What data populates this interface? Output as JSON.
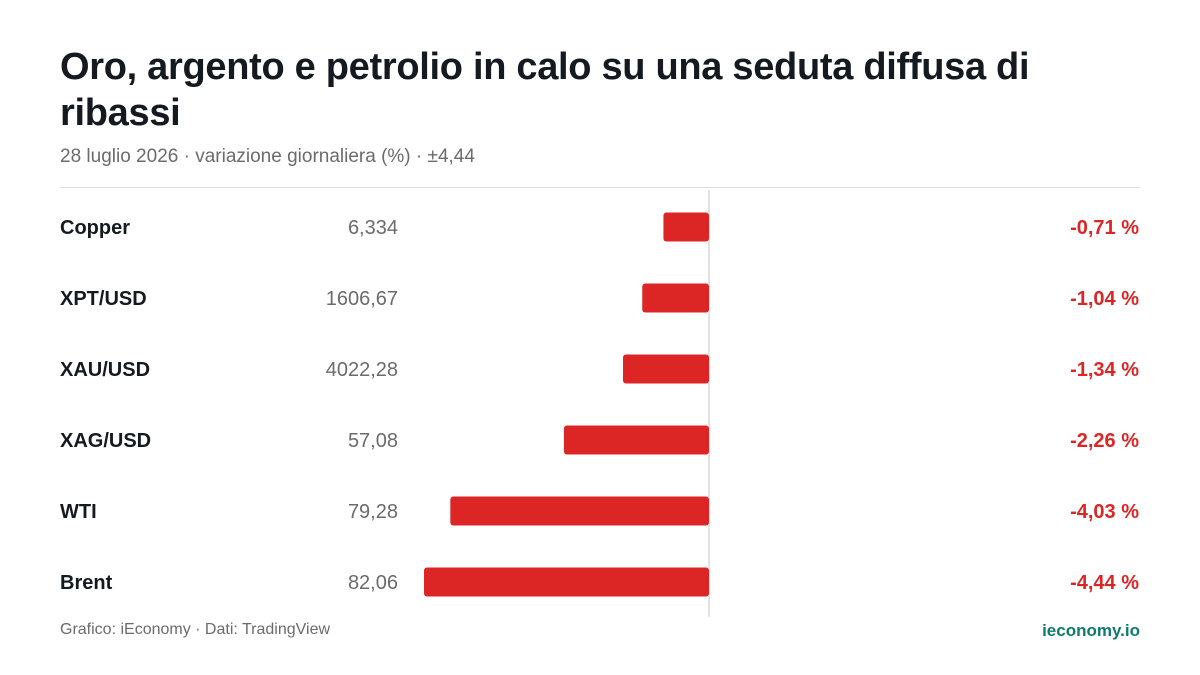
{
  "header": {
    "title": "Oro, argento e petrolio in calo su una seduta diffusa di ribassi",
    "subtitle": "28 luglio 2026 · variazione giornaliera (%) · ±4,44"
  },
  "footer": {
    "credit": "Grafico: iEconomy · Dati: TradingView",
    "brand": "ieconomy.io"
  },
  "colors": {
    "negative": "#dc2626",
    "axis": "#d9d9d9",
    "brand": "#0f7b6c"
  },
  "chart_data": {
    "type": "bar",
    "orientation": "horizontal",
    "xlim": [
      -4.44,
      4.44
    ],
    "rows": [
      {
        "label": "Copper",
        "price": "6,334",
        "change": -0.71,
        "change_label": "-0,71 %"
      },
      {
        "label": "XPT/USD",
        "price": "1606,67",
        "change": -1.04,
        "change_label": "-1,04 %"
      },
      {
        "label": "XAU/USD",
        "price": "4022,28",
        "change": -1.34,
        "change_label": "-1,34 %"
      },
      {
        "label": "XAG/USD",
        "price": "57,08",
        "change": -2.26,
        "change_label": "-2,26 %"
      },
      {
        "label": "WTI",
        "price": "79,28",
        "change": -4.03,
        "change_label": "-4,03 %"
      },
      {
        "label": "Brent",
        "price": "82,06",
        "change": -4.44,
        "change_label": "-4,44 %"
      }
    ]
  }
}
